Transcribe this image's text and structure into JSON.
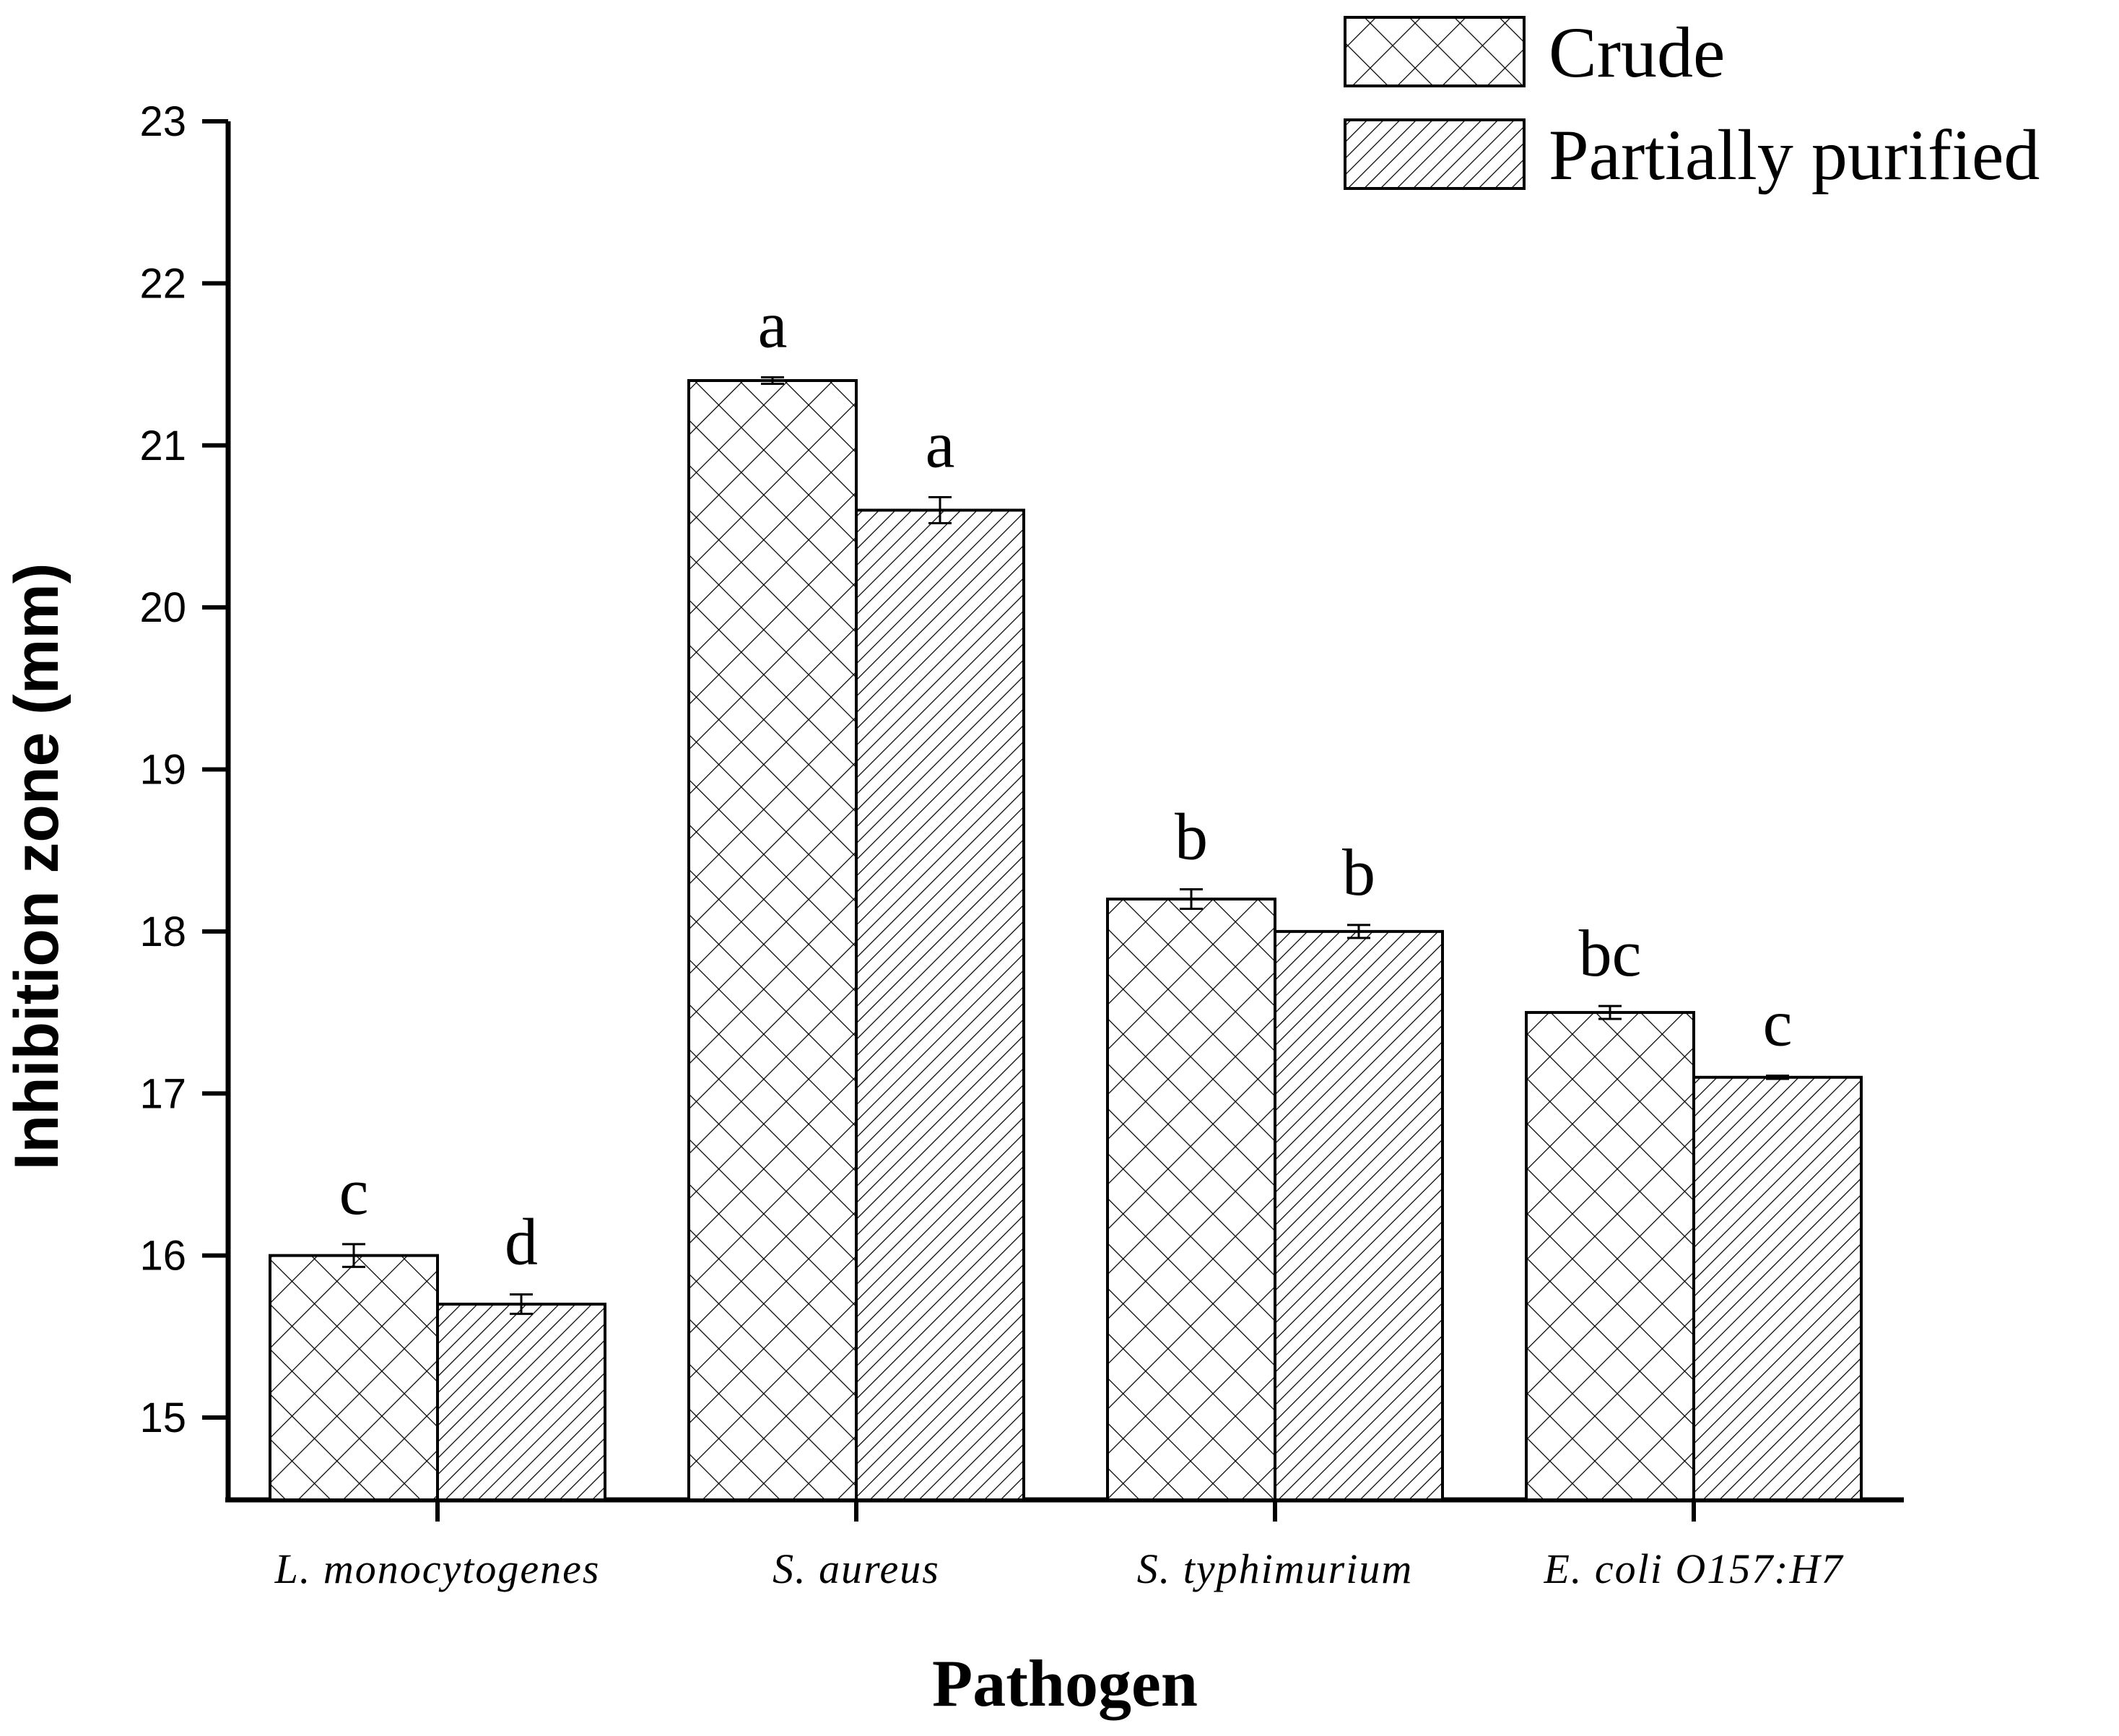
{
  "chart_data": {
    "type": "bar",
    "title": "",
    "xlabel": "Pathogen",
    "ylabel": "Inhibition zone (mm)",
    "ylim": [
      14.5,
      23
    ],
    "yticks": [
      15,
      16,
      17,
      18,
      19,
      20,
      21,
      22,
      23
    ],
    "categories": [
      "L. monocytogenes",
      "S. aureus",
      "S. typhimurium",
      "E. coli O157:H7"
    ],
    "series": [
      {
        "name": "Crude",
        "pattern": "crosshatch",
        "values": [
          16.0,
          21.4,
          18.2,
          17.5
        ],
        "errors": [
          0.07,
          0.02,
          0.06,
          0.04
        ],
        "labels": [
          "c",
          "a",
          "b",
          "bc"
        ]
      },
      {
        "name": "Partially purified",
        "pattern": "diagonal",
        "values": [
          15.7,
          20.6,
          18.0,
          17.1
        ],
        "errors": [
          0.06,
          0.08,
          0.04,
          0.01
        ],
        "labels": [
          "d",
          "a",
          "b",
          "c"
        ]
      }
    ],
    "legend_position": "top-right",
    "grid": false
  },
  "colors": {
    "stroke": "#000000",
    "fill": "#ffffff"
  }
}
